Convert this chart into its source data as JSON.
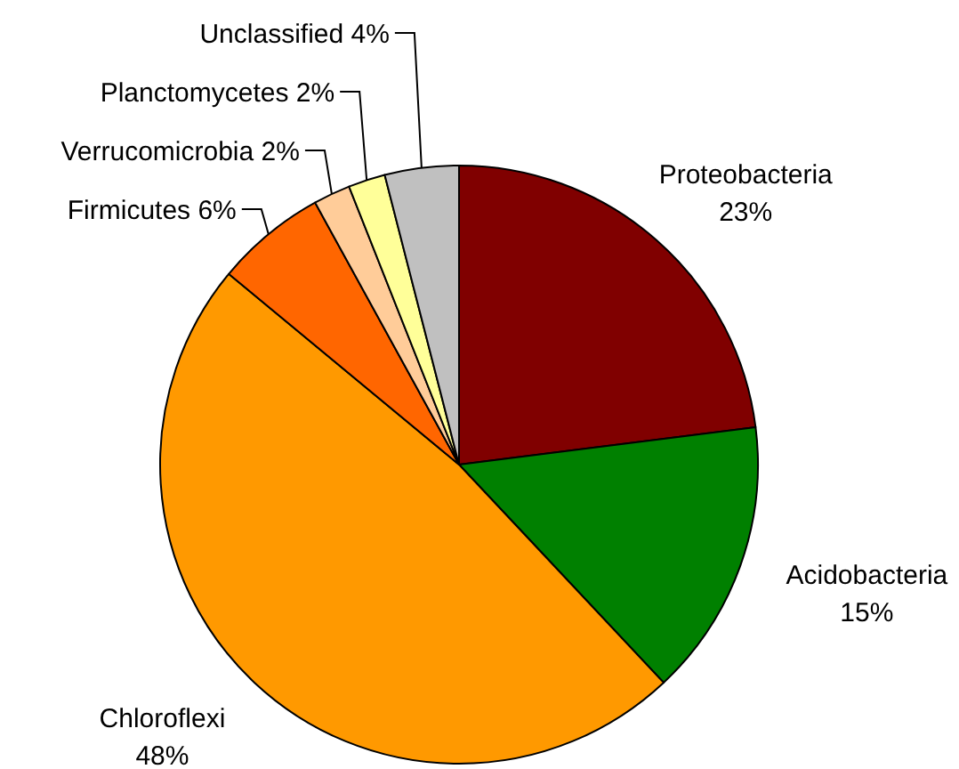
{
  "chart_data": {
    "type": "pie",
    "categories": [
      "Proteobacteria",
      "Acidobacteria",
      "Chloroflexi",
      "Firmicutes",
      "Verrucomicrobia",
      "Planctomycetes",
      "Unclassified"
    ],
    "values": [
      23,
      15,
      48,
      6,
      2,
      2,
      4
    ],
    "colors": [
      "#800000",
      "#008000",
      "#ff9900",
      "#ff6600",
      "#ffcc99",
      "#ffff99",
      "#c0c0c0"
    ],
    "value_labels": [
      "23%",
      "15%",
      "48%",
      "6%",
      "2%",
      "2%",
      "4%"
    ]
  }
}
